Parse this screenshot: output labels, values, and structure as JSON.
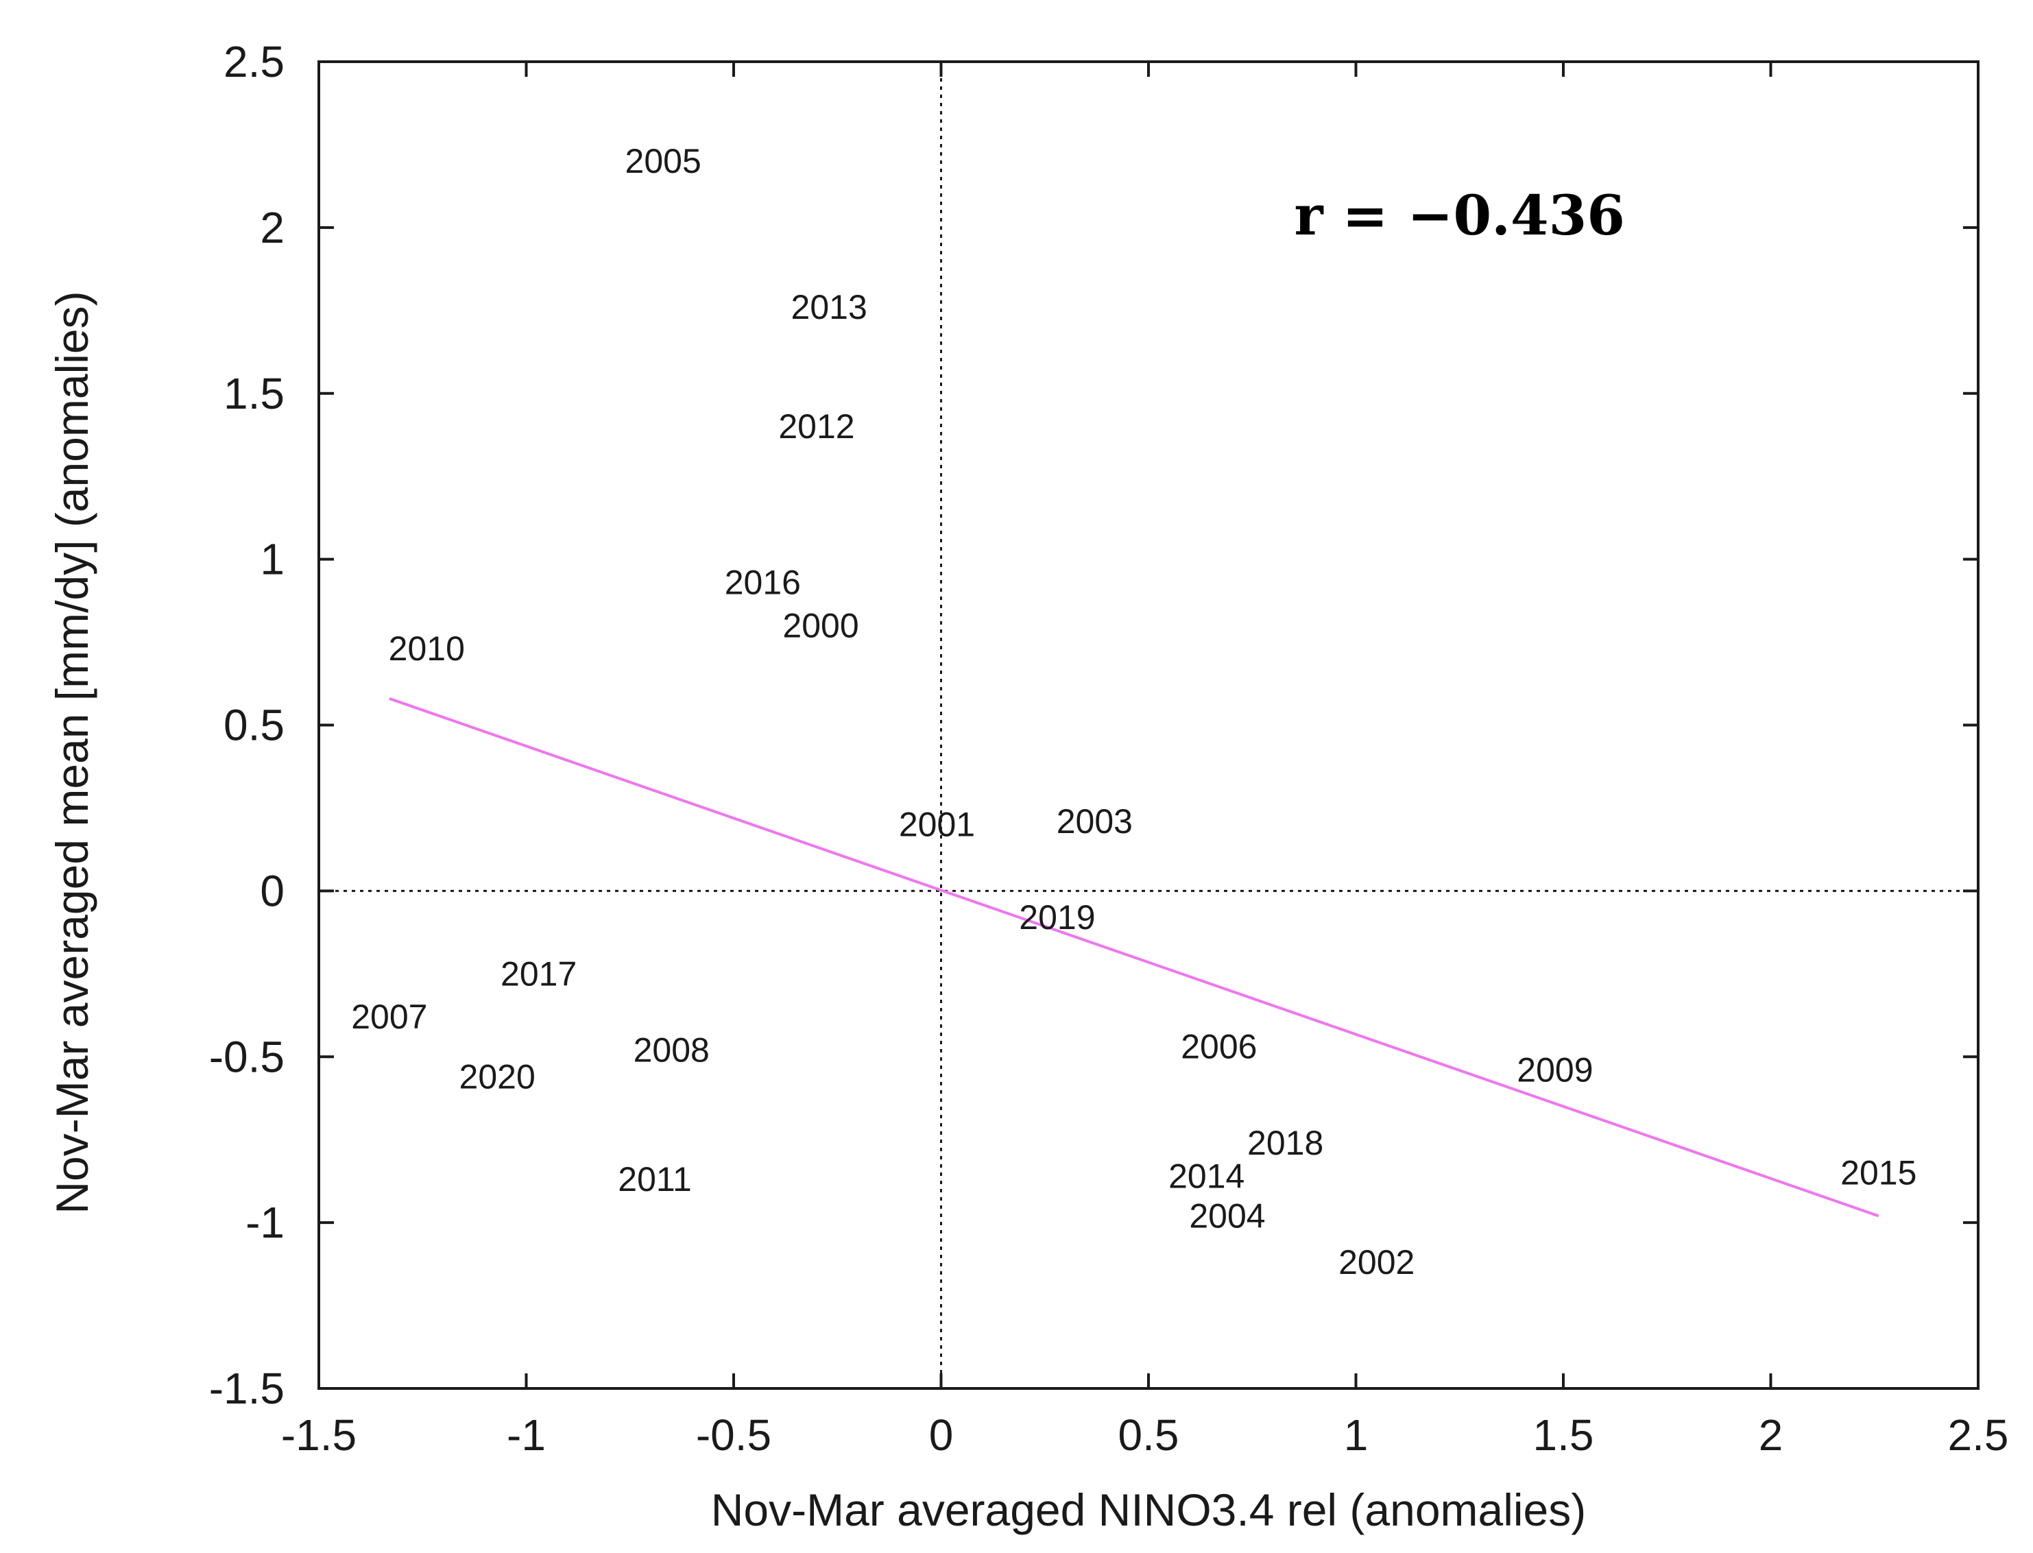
{
  "chart_data": {
    "type": "scatter",
    "xlabel": "Nov-Mar averaged NINO3.4 rel (anomalies)",
    "ylabel": "Nov-Mar averaged mean [mm/dy] (anomalies)",
    "xlim": [
      -1.5,
      2.5
    ],
    "ylim": [
      -1.5,
      2.5
    ],
    "xticks": [
      -1.5,
      -1,
      -0.5,
      0,
      0.5,
      1,
      1.5,
      2,
      2.5
    ],
    "yticks": [
      -1.5,
      -1,
      -0.5,
      0,
      0.5,
      1,
      1.5,
      2,
      2.5
    ],
    "xtick_labels": [
      "-1.5",
      "-1",
      "-0.5",
      "0",
      "0.5",
      "1",
      "1.5",
      "2",
      "2.5"
    ],
    "ytick_labels": [
      "-1.5",
      "-1",
      "-0.5",
      "0",
      "0.5",
      "1",
      "1.5",
      "2",
      "2.5"
    ],
    "annotation": "r = −0.436",
    "zero_lines": true,
    "points": [
      {
        "label": "2005",
        "x": -0.67,
        "y": 2.2
      },
      {
        "label": "2013",
        "x": -0.27,
        "y": 1.76
      },
      {
        "label": "2012",
        "x": -0.3,
        "y": 1.4
      },
      {
        "label": "2016",
        "x": -0.43,
        "y": 0.93
      },
      {
        "label": "2000",
        "x": -0.29,
        "y": 0.8
      },
      {
        "label": "2010",
        "x": -1.24,
        "y": 0.73
      },
      {
        "label": "2001",
        "x": -0.01,
        "y": 0.2
      },
      {
        "label": "2003",
        "x": 0.37,
        "y": 0.21
      },
      {
        "label": "2019",
        "x": 0.28,
        "y": -0.08
      },
      {
        "label": "2017",
        "x": -0.97,
        "y": -0.25
      },
      {
        "label": "2007",
        "x": -1.33,
        "y": -0.38
      },
      {
        "label": "2020",
        "x": -1.07,
        "y": -0.56
      },
      {
        "label": "2008",
        "x": -0.65,
        "y": -0.48
      },
      {
        "label": "2011",
        "x": -0.69,
        "y": -0.87
      },
      {
        "label": "2006",
        "x": 0.67,
        "y": -0.47
      },
      {
        "label": "2009",
        "x": 1.48,
        "y": -0.54
      },
      {
        "label": "2018",
        "x": 0.83,
        "y": -0.76
      },
      {
        "label": "2014",
        "x": 0.64,
        "y": -0.86
      },
      {
        "label": "2004",
        "x": 0.69,
        "y": -0.98
      },
      {
        "label": "2002",
        "x": 1.05,
        "y": -1.12
      },
      {
        "label": "2015",
        "x": 2.26,
        "y": -0.85
      }
    ],
    "fit_line": {
      "x": [
        -1.33,
        2.26
      ],
      "y": [
        0.58,
        -0.98
      ],
      "color": "#ee77ee"
    },
    "colors": {
      "axes": "#1a1a1a",
      "fit": "#ee77ee",
      "zero_lines": "#1a1a1a"
    }
  }
}
